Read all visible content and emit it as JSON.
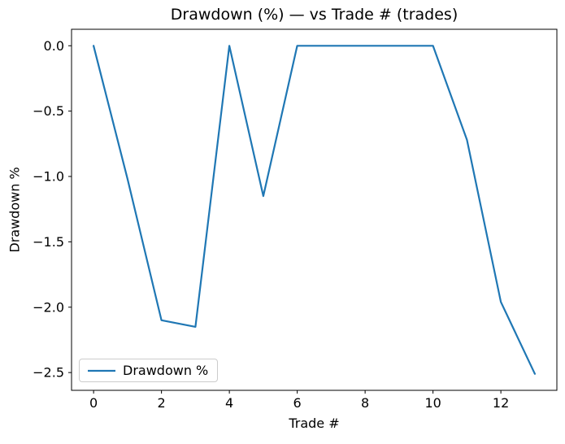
{
  "chart_data": {
    "type": "line",
    "title": "Drawdown (%) — vs Trade # (trades)",
    "xlabel": "Trade #",
    "ylabel": "Drawdown %",
    "x": [
      0,
      1,
      2,
      3,
      4,
      5,
      6,
      7,
      8,
      9,
      10,
      11,
      12,
      13
    ],
    "series": [
      {
        "name": "Drawdown %",
        "color": "#1f77b4",
        "values": [
          0.0,
          -1.02,
          -2.1,
          -2.15,
          0.0,
          -1.15,
          0.0,
          0.0,
          0.0,
          0.0,
          0.0,
          -0.72,
          -1.96,
          -2.51
        ]
      }
    ],
    "xlim": [
      -0.65,
      13.65
    ],
    "ylim": [
      -2.636,
      0.126
    ],
    "x_ticks": {
      "values": [
        0,
        2,
        4,
        6,
        8,
        10,
        12
      ],
      "labels": [
        "0",
        "2",
        "4",
        "6",
        "8",
        "10",
        "12"
      ]
    },
    "y_ticks": {
      "values": [
        0.0,
        -0.5,
        -1.0,
        -1.5,
        -2.0,
        -2.5
      ],
      "labels": [
        "0.0",
        "−0.5",
        "−1.0",
        "−1.5",
        "−2.0",
        "−2.5"
      ]
    },
    "grid": false,
    "legend_position": "lower left"
  },
  "colors": {
    "line": "#1f77b4",
    "spine": "#000000",
    "text": "#000000",
    "legend_border": "#cccccc",
    "background": "#ffffff"
  }
}
